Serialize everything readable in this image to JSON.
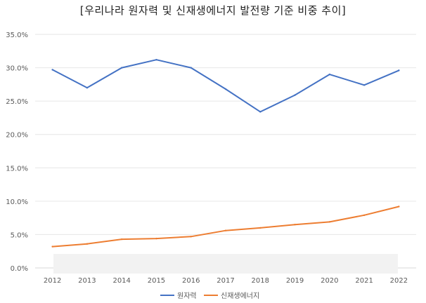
{
  "chart_data": {
    "type": "line",
    "title": "[우리나라 원자력 및 신재생에너지 발전량 기준 비중 추이]",
    "xlabel": "",
    "ylabel": "",
    "categories": [
      "2012",
      "2013",
      "2014",
      "2015",
      "2016",
      "2017",
      "2018",
      "2019",
      "2020",
      "2021",
      "2022"
    ],
    "ylim": [
      0,
      35
    ],
    "yticks": [
      0,
      5,
      10,
      15,
      20,
      25,
      30,
      35
    ],
    "ytick_labels": [
      "0.0%",
      "5.0%",
      "10.0%",
      "15.0%",
      "20.0%",
      "25.0%",
      "30.0%",
      "35.0%"
    ],
    "grid": true,
    "legend_position": "bottom",
    "series": [
      {
        "name": "원자력",
        "color": "#4472C4",
        "values": [
          29.7,
          27.0,
          30.0,
          31.2,
          30.0,
          26.8,
          23.4,
          25.9,
          29.0,
          27.4,
          29.6
        ]
      },
      {
        "name": "신재생에너지",
        "color": "#ED7D31",
        "values": [
          3.2,
          3.6,
          4.3,
          4.4,
          4.7,
          5.6,
          6.0,
          6.5,
          6.9,
          7.9,
          9.2
        ]
      }
    ]
  }
}
